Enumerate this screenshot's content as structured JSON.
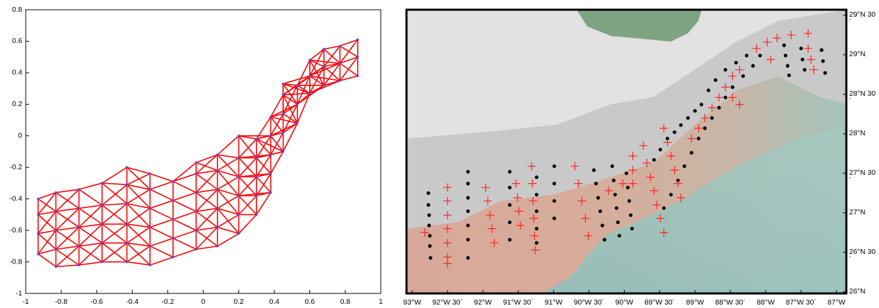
{
  "chart_data": [
    {
      "type": "mesh",
      "color": "#ff0000",
      "node_color": "#5050ff",
      "xlim": [
        -1,
        1
      ],
      "ylim": [
        -1,
        0.8
      ],
      "xticks": [
        -1,
        -0.8,
        -0.6,
        -0.4,
        -0.2,
        0,
        0.2,
        0.4,
        0.6,
        0.8,
        1
      ],
      "yticks": [
        -1,
        -0.8,
        -0.6,
        -0.4,
        -0.2,
        0,
        0.2,
        0.4,
        0.6,
        0.8
      ],
      "x": [
        -0.93,
        -0.93,
        -0.93,
        -0.93,
        -0.83,
        -0.83,
        -0.83,
        -0.83,
        -0.83,
        -0.7,
        -0.7,
        -0.7,
        -0.7,
        -0.7,
        -0.57,
        -0.57,
        -0.57,
        -0.57,
        -0.57,
        -0.43,
        -0.43,
        -0.43,
        -0.43,
        -0.43,
        -0.43,
        -0.3,
        -0.3,
        -0.3,
        -0.3,
        -0.3,
        -0.3,
        -0.17,
        -0.17,
        -0.17,
        -0.17,
        -0.17,
        -0.04,
        -0.04,
        -0.04,
        -0.04,
        -0.04,
        -0.04,
        0.08,
        0.08,
        0.08,
        0.08,
        0.08,
        0.08,
        0.2,
        0.2,
        0.2,
        0.2,
        0.2,
        0.2,
        0.3,
        0.3,
        0.3,
        0.3,
        0.3,
        0.38,
        0.38,
        0.38,
        0.38,
        0.38,
        0.45,
        0.45,
        0.45,
        0.45,
        0.45,
        0.53,
        0.53,
        0.53,
        0.6,
        0.6,
        0.6,
        0.68,
        0.68,
        0.68,
        0.77,
        0.77,
        0.77,
        0.87,
        0.87,
        0.87
      ],
      "y": [
        -0.75,
        -0.62,
        -0.5,
        -0.4,
        -0.83,
        -0.72,
        -0.6,
        -0.48,
        -0.36,
        -0.82,
        -0.7,
        -0.58,
        -0.46,
        -0.34,
        -0.8,
        -0.68,
        -0.56,
        -0.44,
        -0.3,
        -0.8,
        -0.68,
        -0.56,
        -0.43,
        -0.31,
        -0.2,
        -0.82,
        -0.7,
        -0.58,
        -0.46,
        -0.34,
        -0.24,
        -0.77,
        -0.65,
        -0.53,
        -0.41,
        -0.29,
        -0.72,
        -0.6,
        -0.48,
        -0.36,
        -0.24,
        -0.17,
        -0.7,
        -0.58,
        -0.46,
        -0.34,
        -0.22,
        -0.12,
        -0.62,
        -0.5,
        -0.38,
        -0.26,
        -0.14,
        0,
        -0.5,
        -0.38,
        -0.26,
        -0.14,
        -0.02,
        -0.36,
        -0.24,
        -0.12,
        0,
        0.12,
        -0.1,
        0.02,
        0.14,
        0.26,
        0.33,
        0.08,
        0.2,
        0.32,
        0.27,
        0.38,
        0.48,
        0.32,
        0.44,
        0.55,
        0.35,
        0.46,
        0.57,
        0.38,
        0.5,
        0.61
      ]
    },
    {
      "type": "map",
      "xlim": [
        -93.08,
        -86.86
      ],
      "ylim": [
        25.98,
        29.57
      ],
      "xticks": [
        {
          "value": -93,
          "label": "93°W"
        },
        {
          "value": -92.5,
          "label": "92°W 30´"
        },
        {
          "value": -92,
          "label": "92°W"
        },
        {
          "value": -91.5,
          "label": "91°W 30´"
        },
        {
          "value": -91,
          "label": "91°W"
        },
        {
          "value": -90.5,
          "label": "90°W 30´"
        },
        {
          "value": -90,
          "label": "90°W"
        },
        {
          "value": -89.5,
          "label": "89°W 30´"
        },
        {
          "value": -89,
          "label": "89°W"
        },
        {
          "value": -88.5,
          "label": "88°W 30´"
        },
        {
          "value": -88,
          "label": "88°W"
        },
        {
          "value": -87.5,
          "label": "87°W 30´"
        },
        {
          "value": -87,
          "label": "87°W"
        }
      ],
      "yticks": [
        {
          "value": 26,
          "label": "26°N"
        },
        {
          "value": 26.5,
          "label": "26°N 30´"
        },
        {
          "value": 27,
          "label": "27°N"
        },
        {
          "value": 27.5,
          "label": "27°N 30´"
        },
        {
          "value": 28,
          "label": "28°N"
        },
        {
          "value": 28.5,
          "label": "28°N 30´"
        },
        {
          "value": 29,
          "label": "29°N"
        },
        {
          "value": 29.5,
          "label": "29°N 30´"
        }
      ],
      "series": [
        {
          "color": "#000000",
          "marker": "dot",
          "x": [
            -92.77,
            -92.77,
            -92.76,
            -92.76,
            -92.75,
            -92.75,
            -92.74,
            -92.21,
            -92.21,
            -92.21,
            -92.21,
            -92.21,
            -92.21,
            -92.21,
            -91.62,
            -91.62,
            -91.62,
            -91.62,
            -91.62,
            -91.24,
            -91.24,
            -91.24,
            -91.24,
            -91.24,
            -90.99,
            -90.99,
            -90.99,
            -90.99,
            -90.43,
            -90.4,
            -90.37,
            -90.34,
            -90.31,
            -90.28,
            -90.17,
            -90.15,
            -90.13,
            -90.11,
            -90.09,
            -90.07,
            -89.97,
            -89.95,
            -89.93,
            -89.91,
            -89.89,
            -89.44,
            -89.34,
            -89.24,
            -89.15,
            -89.05,
            -88.95,
            -88.86,
            -88.76,
            -88.66,
            -88.57,
            -88.47,
            -88.32,
            -88.18,
            -88.08,
            -89.58,
            -89.49,
            -89.39,
            -89.29,
            -89.2,
            -89.1,
            -89.0,
            -88.91,
            -88.81,
            -88.71,
            -88.57,
            -88.42,
            -88.27,
            -87.74,
            -87.72,
            -87.69,
            -87.67,
            -87.5,
            -87.48,
            -87.45,
            -87.21,
            -87.19,
            -87.16
          ],
          "y": [
            27.25,
            27.1,
            26.97,
            26.84,
            26.71,
            26.58,
            26.43,
            27.52,
            27.37,
            27.19,
            27.02,
            26.84,
            26.66,
            26.43,
            27.52,
            27.32,
            27.1,
            26.88,
            26.66,
            27.45,
            27.23,
            27.02,
            26.8,
            26.62,
            27.59,
            27.37,
            27.15,
            26.93,
            27.54,
            27.37,
            27.19,
            27.02,
            26.84,
            26.66,
            27.59,
            27.41,
            27.23,
            27.06,
            26.88,
            26.71,
            27.5,
            27.32,
            27.15,
            26.97,
            26.8,
            27.06,
            27.23,
            27.41,
            27.59,
            27.76,
            27.94,
            28.07,
            28.2,
            28.33,
            28.46,
            28.59,
            28.73,
            28.86,
            28.99,
            27.67,
            27.8,
            27.94,
            28.02,
            28.11,
            28.2,
            28.29,
            28.37,
            28.55,
            28.68,
            28.81,
            28.9,
            28.99,
            29.12,
            28.99,
            28.86,
            28.74,
            29.08,
            28.94,
            28.81,
            29.06,
            28.92,
            28.77
          ]
        },
        {
          "color": "#ff2020",
          "marker": "plus",
          "x": [
            -92.82,
            -92.5,
            -92.5,
            -92.5,
            -92.5,
            -92.5,
            -92.5,
            -92.5,
            -91.96,
            -91.93,
            -91.9,
            -91.87,
            -91.84,
            -91.53,
            -91.51,
            -91.49,
            -91.47,
            -91.31,
            -91.3,
            -91.29,
            -91.28,
            -91.27,
            -91.26,
            -90.7,
            -90.65,
            -90.6,
            -90.55,
            -90.51,
            -90.22,
            -90.02,
            -89.88,
            -89.88,
            -89.88,
            -89.73,
            -89.68,
            -89.63,
            -89.58,
            -89.54,
            -89.49,
            -89.44,
            -89.44,
            -89.39,
            -89.34,
            -89.29,
            -89.24,
            -89.2,
            -89.05,
            -88.95,
            -88.86,
            -88.76,
            -88.66,
            -88.57,
            -88.47,
            -88.37,
            -88.13,
            -87.98,
            -87.84,
            -87.64,
            -87.4,
            -87.93,
            -87.4,
            -87.36,
            -87.32,
            -88.47,
            -88.37
          ],
          "y": [
            26.75,
            27.32,
            27.15,
            26.97,
            26.8,
            26.62,
            26.44,
            26.36,
            27.32,
            27.15,
            26.97,
            26.8,
            26.62,
            27.37,
            27.19,
            27.02,
            26.84,
            27.59,
            27.37,
            27.15,
            26.93,
            26.71,
            26.53,
            27.59,
            27.37,
            27.15,
            26.93,
            26.71,
            27.28,
            27.37,
            27.72,
            27.54,
            27.37,
            27.85,
            27.63,
            27.45,
            27.28,
            27.1,
            26.93,
            26.75,
            28.07,
            27.89,
            27.72,
            27.54,
            27.37,
            27.19,
            27.94,
            28.07,
            28.2,
            28.33,
            28.46,
            28.59,
            28.73,
            28.81,
            29.08,
            29.16,
            29.21,
            29.25,
            29.27,
            28.94,
            29.08,
            28.94,
            28.81,
            28.46,
            28.37
          ]
        }
      ]
    }
  ]
}
